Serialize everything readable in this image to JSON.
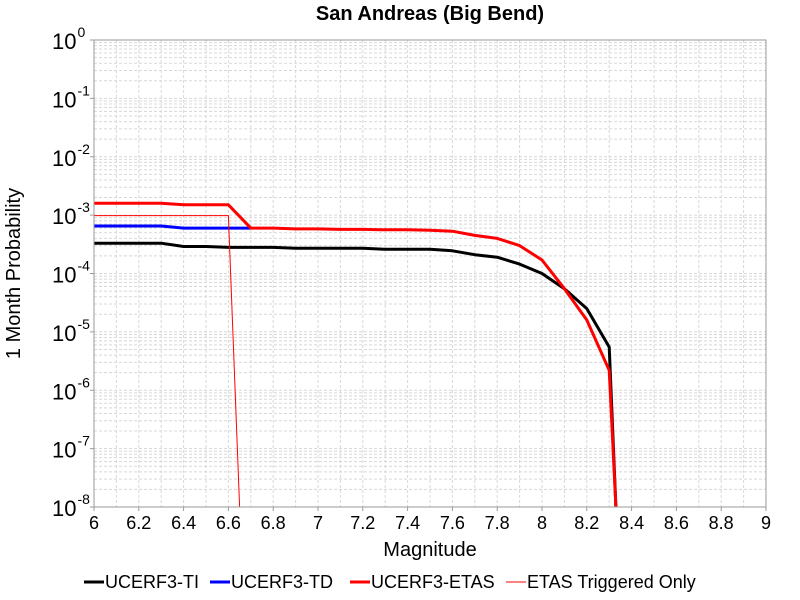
{
  "chart_data": {
    "type": "line",
    "title": "San Andreas (Big Bend)",
    "xlabel": "Magnitude",
    "ylabel": "1 Month Probability",
    "xlim": [
      6,
      9
    ],
    "ylim": [
      1e-08,
      1
    ],
    "yscale": "log",
    "grid": true,
    "legend_position": "bottom",
    "x_ticks": [
      "6",
      "6.2",
      "6.4",
      "6.6",
      "6.8",
      "7",
      "7.2",
      "7.4",
      "7.6",
      "7.8",
      "8",
      "8.2",
      "8.4",
      "8.6",
      "8.8",
      "9"
    ],
    "y_ticks": [
      {
        "base": "10",
        "exp": "0"
      },
      {
        "base": "10",
        "exp": "-1"
      },
      {
        "base": "10",
        "exp": "-2"
      },
      {
        "base": "10",
        "exp": "-3"
      },
      {
        "base": "10",
        "exp": "-4"
      },
      {
        "base": "10",
        "exp": "-5"
      },
      {
        "base": "10",
        "exp": "-6"
      },
      {
        "base": "10",
        "exp": "-7"
      },
      {
        "base": "10",
        "exp": "-8"
      }
    ],
    "series": [
      {
        "name": "UCERF3-TI",
        "color": "#000000",
        "style": "thick",
        "x": [
          6.0,
          6.1,
          6.2,
          6.3,
          6.4,
          6.5,
          6.6,
          6.7,
          6.8,
          6.9,
          7.0,
          7.1,
          7.2,
          7.3,
          7.4,
          7.5,
          7.6,
          7.7,
          7.8,
          7.9,
          8.0,
          8.1,
          8.2,
          8.3,
          8.33
        ],
        "y": [
          0.00033,
          0.00033,
          0.00033,
          0.00033,
          0.00029,
          0.00029,
          0.00028,
          0.00028,
          0.00028,
          0.00027,
          0.00027,
          0.00027,
          0.00027,
          0.00026,
          0.00026,
          0.00026,
          0.000245,
          0.00021,
          0.00019,
          0.000145,
          0.0001,
          5.5e-05,
          2.5e-05,
          5.5e-06,
          1e-08
        ]
      },
      {
        "name": "UCERF3-TD",
        "color": "#0000ff",
        "style": "thick",
        "x": [
          6.0,
          6.1,
          6.2,
          6.3,
          6.4,
          6.5,
          6.6,
          6.7
        ],
        "y": [
          0.00065,
          0.00065,
          0.00065,
          0.00065,
          0.0006,
          0.0006,
          0.0006,
          0.0006
        ]
      },
      {
        "name": "UCERF3-ETAS",
        "color": "#ff0000",
        "style": "thick",
        "x": [
          6.0,
          6.1,
          6.2,
          6.3,
          6.4,
          6.5,
          6.6,
          6.7,
          6.8,
          6.9,
          7.0,
          7.1,
          7.2,
          7.3,
          7.4,
          7.5,
          7.6,
          7.7,
          7.8,
          7.9,
          8.0,
          8.1,
          8.2,
          8.3,
          8.33
        ],
        "y": [
          0.0016,
          0.0016,
          0.0016,
          0.0016,
          0.0015,
          0.0015,
          0.0015,
          0.0006,
          0.0006,
          0.00058,
          0.00058,
          0.00057,
          0.00057,
          0.00056,
          0.00056,
          0.00055,
          0.00053,
          0.00045,
          0.0004,
          0.0003,
          0.00017,
          5.5e-05,
          1.6e-05,
          2.2e-06,
          1e-08
        ]
      },
      {
        "name": "ETAS Triggered Only",
        "color": "#ff0000",
        "style": "thin",
        "x": [
          6.0,
          6.1,
          6.2,
          6.3,
          6.4,
          6.5,
          6.6,
          6.65
        ],
        "y": [
          0.00098,
          0.00098,
          0.00098,
          0.00098,
          0.00098,
          0.00098,
          0.00098,
          1e-08
        ]
      }
    ]
  }
}
